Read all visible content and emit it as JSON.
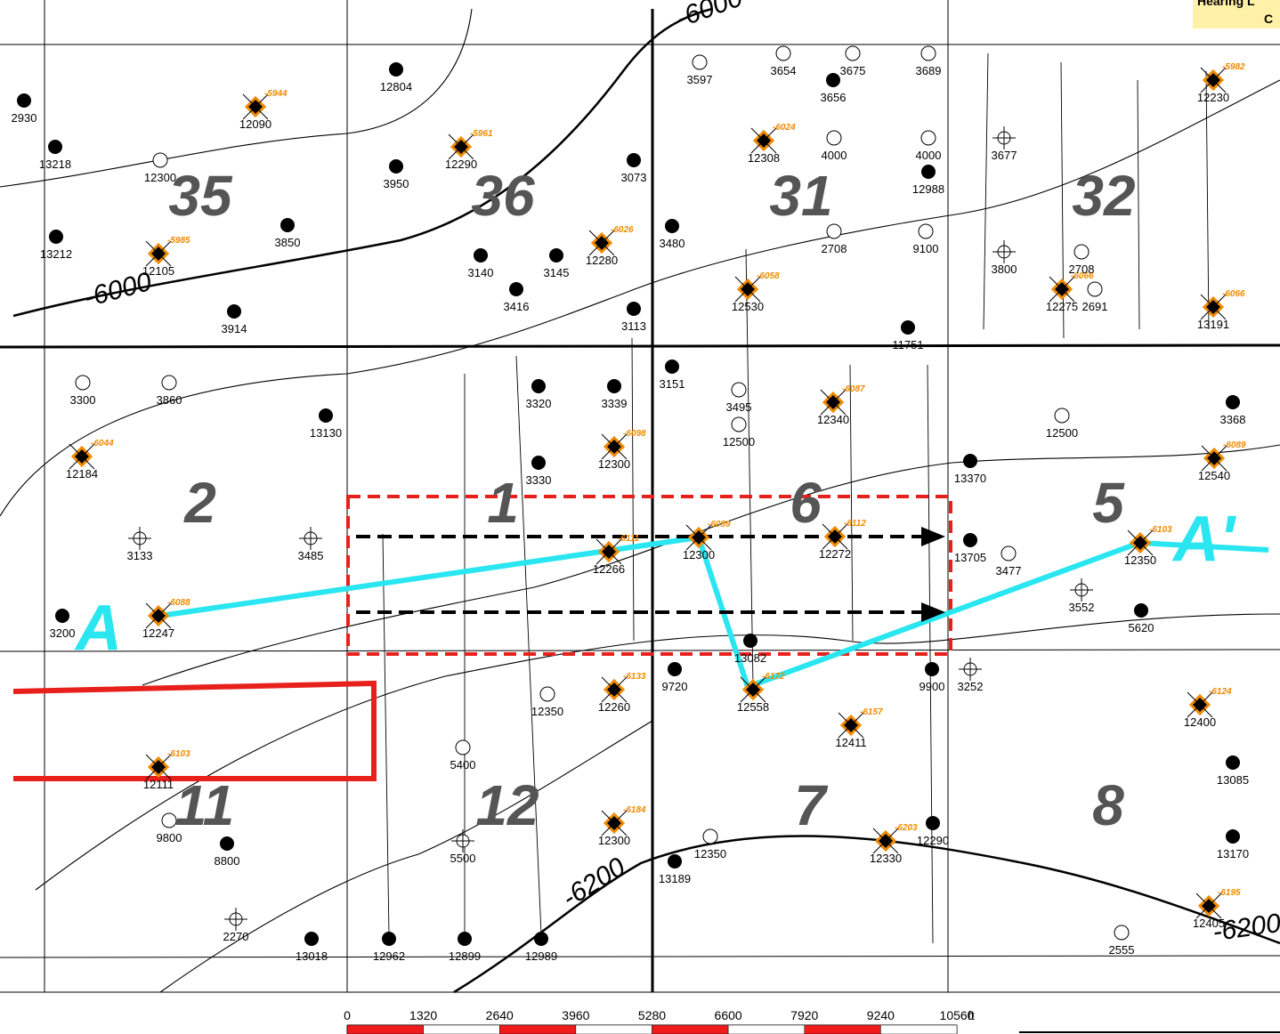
{
  "header": {
    "legend_fragment": [
      "Hearing L",
      "C"
    ]
  },
  "sections": [
    "35",
    "36",
    "31",
    "32",
    "2",
    "1",
    "6",
    "5",
    "11",
    "12",
    "7",
    "8"
  ],
  "contour_labels": [
    "-6000",
    "-6000",
    "-6200",
    "-6200"
  ],
  "cross_section": {
    "start": "A",
    "end": "A'"
  },
  "wells": [
    {
      "label": 12090,
      "depth": -5944
    },
    {
      "label": 12290,
      "depth": -5961
    },
    {
      "label": 12308,
      "depth": -6024
    },
    {
      "label": 12105,
      "depth": -5985
    },
    {
      "label": 12280,
      "depth": -6026
    },
    {
      "label": 12530,
      "depth": -6058
    },
    {
      "label": 12275,
      "depth": -6066
    },
    {
      "label": 13191,
      "depth": -6066
    },
    {
      "label": 12230,
      "depth": -5982
    },
    {
      "label": 12184,
      "depth": -6044
    },
    {
      "label": 12300,
      "depth": -6098
    },
    {
      "label": 12340,
      "depth": -6087
    },
    {
      "label": 12540,
      "depth": -6089
    },
    {
      "label": 12247,
      "depth": -6088
    },
    {
      "label": 12266,
      "depth": -6111
    },
    {
      "label": 12300,
      "depth": -6089
    },
    {
      "label": 12272,
      "depth": -6112
    },
    {
      "label": 12350,
      "depth": -6103
    },
    {
      "label": 12260,
      "depth": -6133
    },
    {
      "label": 12558,
      "depth": -6172
    },
    {
      "label": 12411,
      "depth": -6157
    },
    {
      "label": 12400,
      "depth": -6124
    },
    {
      "label": 12111,
      "depth": -6103
    },
    {
      "label": 12300,
      "depth": -6184
    },
    {
      "label": 12330,
      "depth": -6203
    },
    {
      "label": 12405,
      "depth": -6195
    },
    {
      "label": 13218
    },
    {
      "label": 3950
    },
    {
      "label": 3073
    },
    {
      "label": 13212
    },
    {
      "label": 3914
    },
    {
      "label": 3416
    },
    {
      "label": 3113
    },
    {
      "label": 11751
    },
    {
      "label": 3151
    },
    {
      "label": 3320
    },
    {
      "label": 3339
    },
    {
      "label": 13130
    },
    {
      "label": 3330
    },
    {
      "label": 13370
    },
    {
      "label": 3368
    },
    {
      "label": 13705
    },
    {
      "label": 5620
    },
    {
      "label": 3200
    },
    {
      "label": 13082
    },
    {
      "label": 9900
    },
    {
      "label": 9720
    },
    {
      "label": 8800
    },
    {
      "label": 13018
    },
    {
      "label": 12962
    },
    {
      "label": 12899
    },
    {
      "label": 12989
    },
    {
      "label": 13189
    },
    {
      "label": 13085
    },
    {
      "label": 13170
    },
    {
      "label": 12290
    },
    {
      "label": 2930
    },
    {
      "label": 3656
    },
    {
      "label": 12804
    },
    {
      "label": 12988
    },
    {
      "label": 3850
    },
    {
      "label": 3140
    },
    {
      "label": 3145
    },
    {
      "label": 3480
    },
    {
      "label": 12300
    },
    {
      "label": 4000
    },
    {
      "label": 4000
    },
    {
      "label": 3495
    },
    {
      "label": 3300
    },
    {
      "label": 3860
    },
    {
      "label": 12500
    },
    {
      "label": 12500
    },
    {
      "label": 3477
    },
    {
      "label": 12350
    },
    {
      "label": 5400
    },
    {
      "label": 9800
    },
    {
      "label": 12350
    },
    {
      "label": 2555
    },
    {
      "label": 2708
    },
    {
      "label": 2691
    },
    {
      "label": 2708
    },
    {
      "label": 9100
    },
    {
      "label": 3689
    },
    {
      "label": 3675
    },
    {
      "label": 3654
    },
    {
      "label": 3597
    },
    {
      "label": 3133
    },
    {
      "label": 3485
    },
    {
      "label": 3677
    },
    {
      "label": 3800
    },
    {
      "label": 3552
    },
    {
      "label": 3252
    },
    {
      "label": 5500
    },
    {
      "label": 2270
    }
  ],
  "scale": {
    "ticks": [
      0,
      1320,
      2640,
      3960,
      5280,
      6600,
      7920,
      9240,
      10560
    ],
    "unit": "ft"
  }
}
